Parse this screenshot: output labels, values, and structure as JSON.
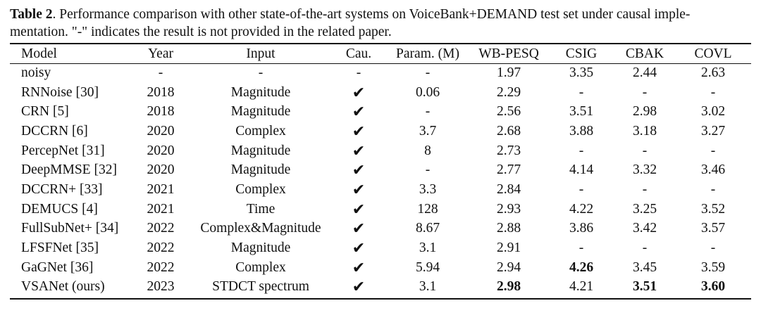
{
  "caption": {
    "label": "Table 2",
    "line1": ". Performance comparison with other state-of-the-art systems on VoiceBank+DEMAND test set under causal imple-",
    "line2": "mentation. \"-\" indicates the result is not provided in the related paper."
  },
  "table": {
    "headers": [
      "Model",
      "Year",
      "Input",
      "Cau.",
      "Param. (M)",
      "WB-PESQ",
      "CSIG",
      "CBAK",
      "COVL"
    ],
    "rows": [
      [
        "noisy",
        "-",
        "-",
        "-",
        "-",
        "1.97",
        "3.35",
        "2.44",
        "2.63"
      ],
      [
        "RNNoise [30]",
        "2018",
        "Magnitude",
        "✔",
        "0.06",
        "2.29",
        "-",
        "-",
        "-"
      ],
      [
        "CRN [5]",
        "2018",
        "Magnitude",
        "✔",
        "-",
        "2.56",
        "3.51",
        "2.98",
        "3.02"
      ],
      [
        "DCCRN [6]",
        "2020",
        "Complex",
        "✔",
        "3.7",
        "2.68",
        "3.88",
        "3.18",
        "3.27"
      ],
      [
        "PercepNet [31]",
        "2020",
        "Magnitude",
        "✔",
        "8",
        "2.73",
        "-",
        "-",
        "-"
      ],
      [
        "DeepMMSE [32]",
        "2020",
        "Magnitude",
        "✔",
        "-",
        "2.77",
        "4.14",
        "3.32",
        "3.46"
      ],
      [
        "DCCRN+ [33]",
        "2021",
        "Complex",
        "✔",
        "3.3",
        "2.84",
        "-",
        "-",
        "-"
      ],
      [
        "DEMUCS [4]",
        "2021",
        "Time",
        "✔",
        "128",
        "2.93",
        "4.22",
        "3.25",
        "3.52"
      ],
      [
        "FullSubNet+ [34]",
        "2022",
        "Complex&Magnitude",
        "✔",
        "8.67",
        "2.88",
        "3.86",
        "3.42",
        "3.57"
      ],
      [
        "LFSFNet [35]",
        "2022",
        "Magnitude",
        "✔",
        "3.1",
        "2.91",
        "-",
        "-",
        "-"
      ],
      [
        "GaGNet [36]",
        "2022",
        "Complex",
        "✔",
        "5.94",
        "2.94",
        "4.26",
        "3.45",
        "3.59"
      ],
      [
        "VSANet (ours)",
        "2023",
        "STDCT spectrum",
        "✔",
        "3.1",
        "2.98",
        "4.21",
        "3.51",
        "3.60"
      ]
    ]
  }
}
